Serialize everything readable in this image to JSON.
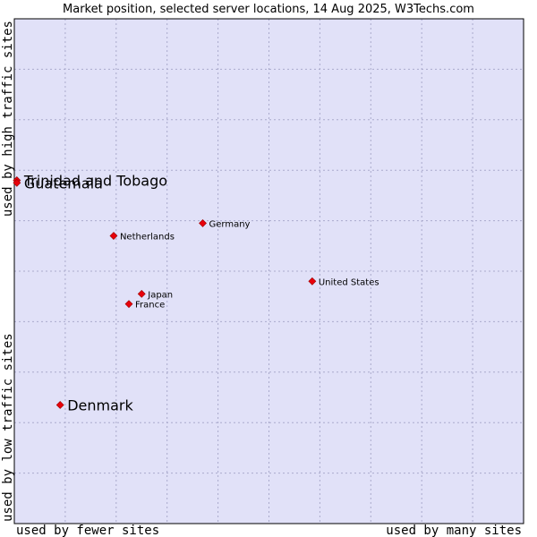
{
  "chart_data": {
    "type": "scatter",
    "title": "Market position, selected server locations, 14 Aug 2025, W3Techs.com",
    "xlabel_left": "used by fewer sites",
    "xlabel_right": "used by many sites",
    "ylabel_bottom": "used by low traffic sites",
    "ylabel_top": "used by high traffic sites",
    "xlim": [
      0,
      10
    ],
    "ylim": [
      0,
      10
    ],
    "grid": true,
    "colors": {
      "plot_background": "#e1e1f8",
      "grid": "#aaaacc",
      "marker": "#e8000b",
      "border": "#000000"
    },
    "points": [
      {
        "name": "Trinidad and Tobago",
        "x": 0.05,
        "y": 6.8,
        "label_size": "large"
      },
      {
        "name": "Guatemala",
        "x": 0.05,
        "y": 6.75,
        "label_size": "large"
      },
      {
        "name": "Denmark",
        "x": 0.9,
        "y": 2.35,
        "label_size": "large"
      },
      {
        "name": "Germany",
        "x": 3.7,
        "y": 5.95,
        "label_size": "small"
      },
      {
        "name": "Netherlands",
        "x": 1.95,
        "y": 5.7,
        "label_size": "small"
      },
      {
        "name": "United States",
        "x": 5.85,
        "y": 4.8,
        "label_size": "small"
      },
      {
        "name": "Japan",
        "x": 2.5,
        "y": 4.55,
        "label_size": "small"
      },
      {
        "name": "France",
        "x": 2.25,
        "y": 4.35,
        "label_size": "small"
      }
    ]
  }
}
